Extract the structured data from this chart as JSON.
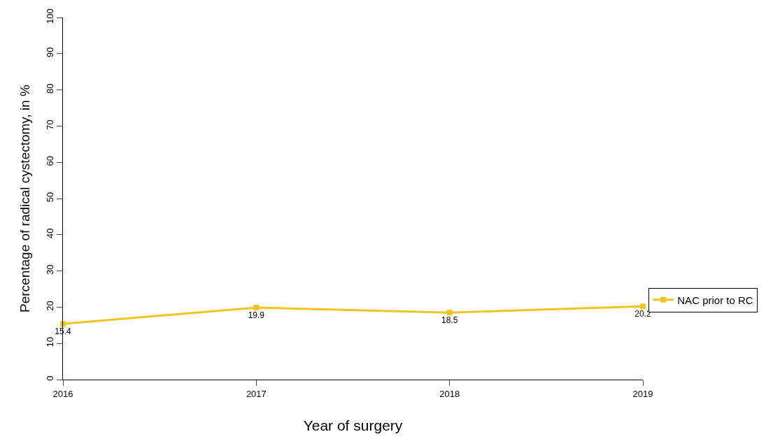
{
  "chart_data": {
    "type": "line",
    "xlabel": "Year of surgery",
    "ylabel": "Percentage of radical cystectomy, in %",
    "x": [
      2016,
      2017,
      2018,
      2019
    ],
    "series": [
      {
        "name": "NAC prior to RC",
        "color": "#f2c41c",
        "values": [
          15.4,
          19.9,
          18.5,
          20.2
        ]
      }
    ],
    "xlim": [
      2016,
      2019
    ],
    "xticks": [
      2016,
      2017,
      2018,
      2019
    ],
    "ylim": [
      0,
      100
    ],
    "yticks": [
      0,
      10,
      20,
      30,
      40,
      50,
      60,
      70,
      80,
      90,
      100
    ],
    "data_labels": true,
    "grid": false,
    "legend": "right",
    "marker": "square",
    "line_style": "solid"
  }
}
